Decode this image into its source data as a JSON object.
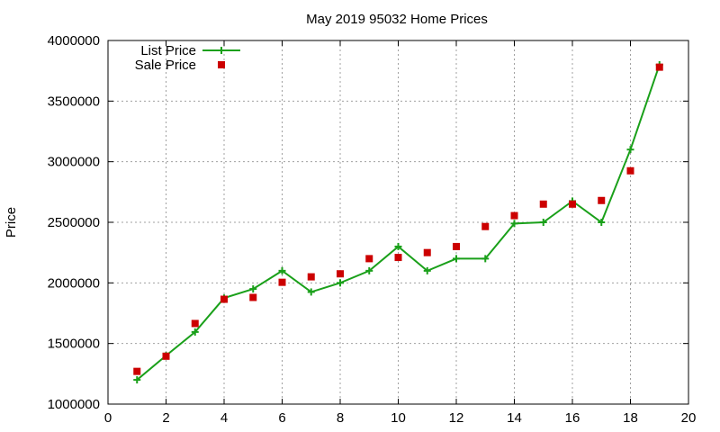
{
  "chart_data": {
    "type": "line",
    "title": "May 2019 95032 Home Prices",
    "xlabel": "",
    "ylabel": "Price",
    "xlim": [
      0,
      20
    ],
    "ylim": [
      1000000,
      4000000
    ],
    "x_ticks": [
      "0",
      "2",
      "4",
      "6",
      "8",
      "10",
      "12",
      "14",
      "16",
      "18",
      "20"
    ],
    "y_ticks": [
      "1000000",
      "1500000",
      "2000000",
      "2500000",
      "3000000",
      "3500000",
      "4000000"
    ],
    "grid": true,
    "legend_position": "top-left",
    "series": [
      {
        "name": "List Price",
        "style": "line-with-plus-markers",
        "color": "#1aa01a",
        "points": [
          [
            1,
            1200000
          ],
          [
            2,
            1400000
          ],
          [
            3,
            1595000
          ],
          [
            4,
            1875000
          ],
          [
            5,
            1950000
          ],
          [
            6,
            2100000
          ],
          [
            7,
            1925000
          ],
          [
            8,
            2000000
          ],
          [
            9,
            2100000
          ],
          [
            10,
            2300000
          ],
          [
            11,
            2100000
          ],
          [
            12,
            2200000
          ],
          [
            13,
            2200000
          ],
          [
            14,
            2490000
          ],
          [
            15,
            2500000
          ],
          [
            16,
            2675000
          ],
          [
            17,
            2500000
          ],
          [
            18,
            3100000
          ],
          [
            19,
            3800000
          ]
        ]
      },
      {
        "name": "Sale Price",
        "style": "square-markers",
        "color": "#cc0000",
        "points": [
          [
            1,
            1270000
          ],
          [
            2,
            1395000
          ],
          [
            3,
            1665000
          ],
          [
            4,
            1865000
          ],
          [
            5,
            1880000
          ],
          [
            6,
            2005000
          ],
          [
            7,
            2050000
          ],
          [
            8,
            2075000
          ],
          [
            9,
            2200000
          ],
          [
            10,
            2210000
          ],
          [
            11,
            2250000
          ],
          [
            12,
            2300000
          ],
          [
            13,
            2465000
          ],
          [
            14,
            2555000
          ],
          [
            15,
            2650000
          ],
          [
            16,
            2650000
          ],
          [
            17,
            2680000
          ],
          [
            18,
            2925000
          ],
          [
            19,
            3780000
          ]
        ]
      }
    ]
  }
}
